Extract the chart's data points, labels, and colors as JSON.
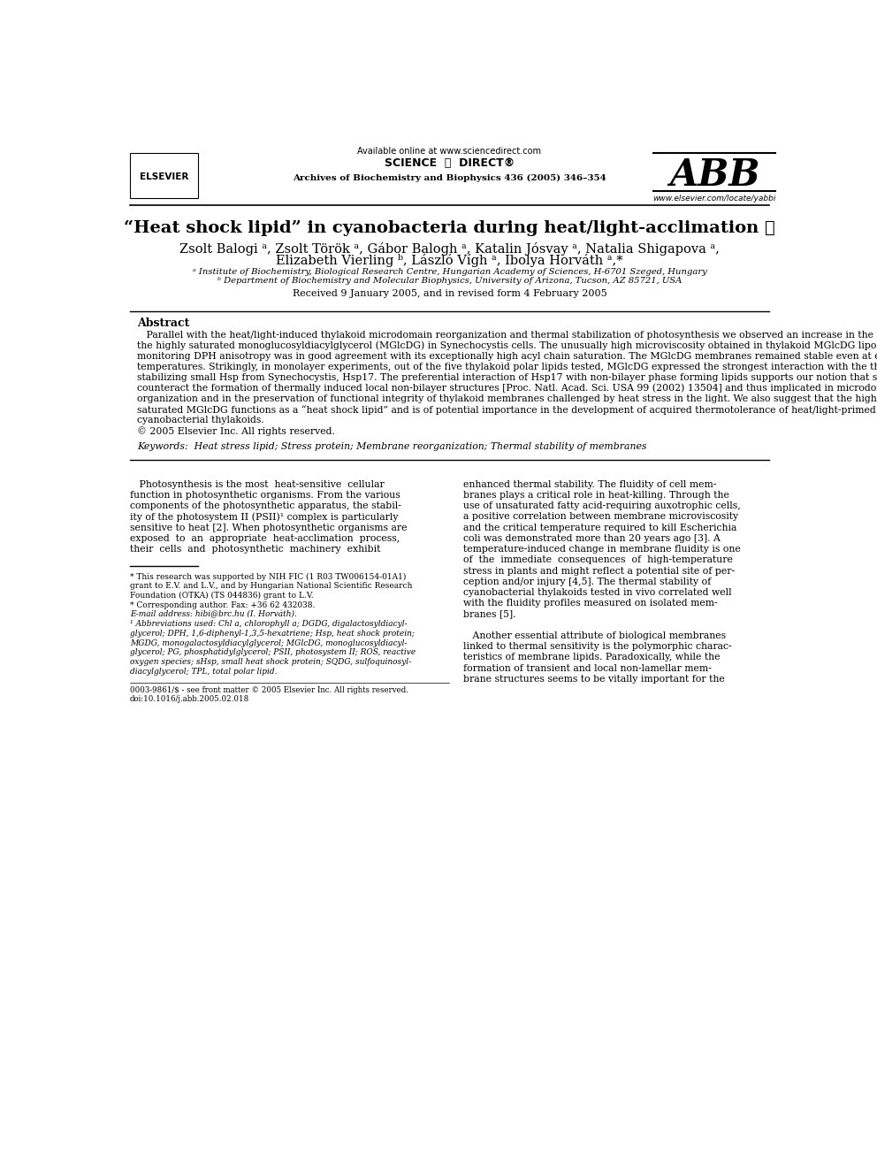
{
  "bg_color": "#ffffff",
  "header": {
    "available_online": "Available online at www.sciencedirect.com",
    "journal": "Archives of Biochemistry and Biophysics 436 (2005) 346–354",
    "abb_text": "ABB",
    "elsevier_text": "ELSEVIER",
    "website": "www.elsevier.com/locate/yabbi"
  },
  "title": "“Heat shock lipid” in cyanobacteria during heat/light-acclimation ★",
  "authors_line1": "Zsolt Balogi ᵃ, Zsolt Török ᵃ, Gábor Balogh ᵃ, Katalin Jósvay ᵃ, Natalia Shigapova ᵃ,",
  "authors_line2": "Elizabeth Vierling ᵇ, László Vígh ᵃ, Ibolya Horváth ᵃ,*",
  "affil_a": "ᵃ Institute of Biochemistry, Biological Research Centre, Hungarian Academy of Sciences, H-6701 Szeged, Hungary",
  "affil_b": "ᵇ Department of Biochemistry and Molecular Biophysics, University of Arizona, Tucson, AZ 85721, USA",
  "received": "Received 9 January 2005, and in revised form 4 February 2005",
  "abstract_title": "Abstract",
  "abstract_lines": [
    "   Parallel with the heat/light-induced thylakoid microdomain reorganization and thermal stabilization of photosynthesis we observed an increase in the level of",
    "the highly saturated monoglucosyldiacylglycerol (MGlcDG) in Synechocystis cells. The unusually high microviscosity obtained in thylakoid MGlcDG liposomes by",
    "monitoring DPH anisotropy was in good agreement with its exceptionally high acyl chain saturation. The MGlcDG membranes remained stable even at extreme high",
    "temperatures. Strikingly, in monolayer experiments, out of the five thylakoid polar lipids tested, MGlcDG expressed the strongest interaction with the thylakoid-",
    "stabilizing small Hsp from Synechocystis, Hsp17. The preferential interaction of Hsp17 with non-bilayer phase forming lipids supports our notion that sHsps",
    "counteract the formation of thermally induced local non-bilayer structures [Proc. Natl. Acad. Sci. USA 99 (2002) 13504] and thus implicated in microdomain",
    "organization and in the preservation of functional integrity of thylakoid membranes challenged by heat stress in the light. We also suggest that the highly",
    "saturated MGlcDG functions as a “heat shock lipid” and is of potential importance in the development of acquired thermotolerance of heat/light-primed",
    "cyanobacterial thylakoids.",
    "© 2005 Elsevier Inc. All rights reserved."
  ],
  "keywords": "Keywords:  Heat stress lipid; Stress protein; Membrane reorganization; Thermal stability of membranes",
  "left_col_lines": [
    "   Photosynthesis is the most  heat-sensitive  cellular",
    "function in photosynthetic organisms. From the various",
    "components of the photosynthetic apparatus, the stabil-",
    "ity of the photosystem II (PSII)¹ complex is particularly",
    "sensitive to heat [2]. When photosynthetic organisms are",
    "exposed  to  an  appropriate  heat-acclimation  process,",
    "their  cells  and  photosynthetic  machinery  exhibit"
  ],
  "right_col_lines": [
    "enhanced thermal stability. The fluidity of cell mem-",
    "branes plays a critical role in heat-killing. Through the",
    "use of unsaturated fatty acid-requiring auxotrophic cells,",
    "a positive correlation between membrane microviscosity",
    "and the critical temperature required to kill Escherichia",
    "coli was demonstrated more than 20 years ago [3]. A",
    "temperature-induced change in membrane fluidity is one",
    "of  the  immediate  consequences  of  high-temperature",
    "stress in plants and might reflect a potential site of per-",
    "ception and/or injury [4,5]. The thermal stability of",
    "cyanobacterial thylakoids tested in vivo correlated well",
    "with the fluidity profiles measured on isolated mem-",
    "branes [5].",
    "",
    "   Another essential attribute of biological membranes",
    "linked to thermal sensitivity is the polymorphic charac-",
    "teristics of membrane lipids. Paradoxically, while the",
    "formation of transient and local non-lamellar mem-",
    "brane structures seems to be vitally important for the"
  ],
  "fn_lines": [
    "* This research was supported by NIH FIC (1 R03 TW006154-01A1)",
    "grant to E.V. and L.V., and by Hungarian National Scientific Research",
    "Foundation (OTKA) (TS 044836) grant to L.V.",
    "* Corresponding author. Fax: +36 62 432038.",
    "E-mail address: hibi@brc.hu (I. Horváth).",
    "¹ Abbreviations used: Chl a, chlorophyll a; DGDG, digalactosyldiacyl-",
    "glycerol; DPH, 1,6-diphenyl-1,3,5-hexatriene; Hsp, heat shock protein;",
    "MGDG, monogalactosyldiacylglycerol; MGlcDG, monoglucosyldiacyl-",
    "glycerol; PG, phosphatidylglycerol; PSII, photosystem II; ROS, reactive",
    "oxygen species; sHsp, small heat shock protein; SQDG, sulfoquinosyl-",
    "diacylglycerol; TPL, total polar lipid."
  ],
  "fn_italic_keywords": [
    "E-mail",
    "Abbreviations",
    "glycerol;",
    "MGDG,",
    "oxygen",
    "diacylglycerol"
  ],
  "issn": "0003-9861/$ - see front matter © 2005 Elsevier Inc. All rights reserved.\ndoi:10.1016/j.abb.2005.02.018"
}
